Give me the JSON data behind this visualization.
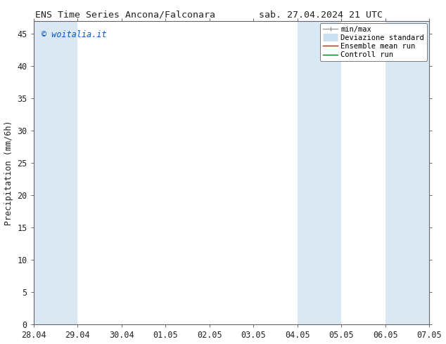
{
  "title_left": "ENS Time Series Ancona/Falconara",
  "title_right": "sab. 27.04.2024 21 UTC",
  "ylabel": "Precipitation (mm/6h)",
  "watermark": "© woitalia.it",
  "watermark_color": "#0055cc",
  "xtick_labels": [
    "28.04",
    "29.04",
    "30.04",
    "01.05",
    "02.05",
    "03.05",
    "04.05",
    "05.05",
    "06.05",
    "07.05"
  ],
  "xlim": [
    0,
    9
  ],
  "ylim": [
    0,
    47
  ],
  "ytick_positions": [
    0,
    5,
    10,
    15,
    20,
    25,
    30,
    35,
    40,
    45
  ],
  "ytick_labels": [
    "0",
    "5",
    "10",
    "15",
    "20",
    "25",
    "30",
    "35",
    "40",
    "45"
  ],
  "shaded_bands": [
    {
      "x_start": 0.0,
      "x_end": 1.0
    },
    {
      "x_start": 6.0,
      "x_end": 6.5
    },
    {
      "x_start": 6.5,
      "x_end": 7.0
    },
    {
      "x_start": 8.0,
      "x_end": 8.5
    },
    {
      "x_start": 8.5,
      "x_end": 9.0
    }
  ],
  "shade_color": "#dae8f4",
  "background_color": "#ffffff",
  "legend_items": [
    {
      "label": "min/max",
      "color": "#999999",
      "lw": 1.0
    },
    {
      "label": "Deviazione standard",
      "color": "#cce0f0",
      "lw": 8
    },
    {
      "label": "Ensemble mean run",
      "color": "#ff0000",
      "lw": 1.0
    },
    {
      "label": "Controll run",
      "color": "#007700",
      "lw": 1.0
    }
  ],
  "spine_color": "#666666",
  "tick_color": "#222222",
  "font_size": 8.5,
  "title_font_size": 9.5
}
